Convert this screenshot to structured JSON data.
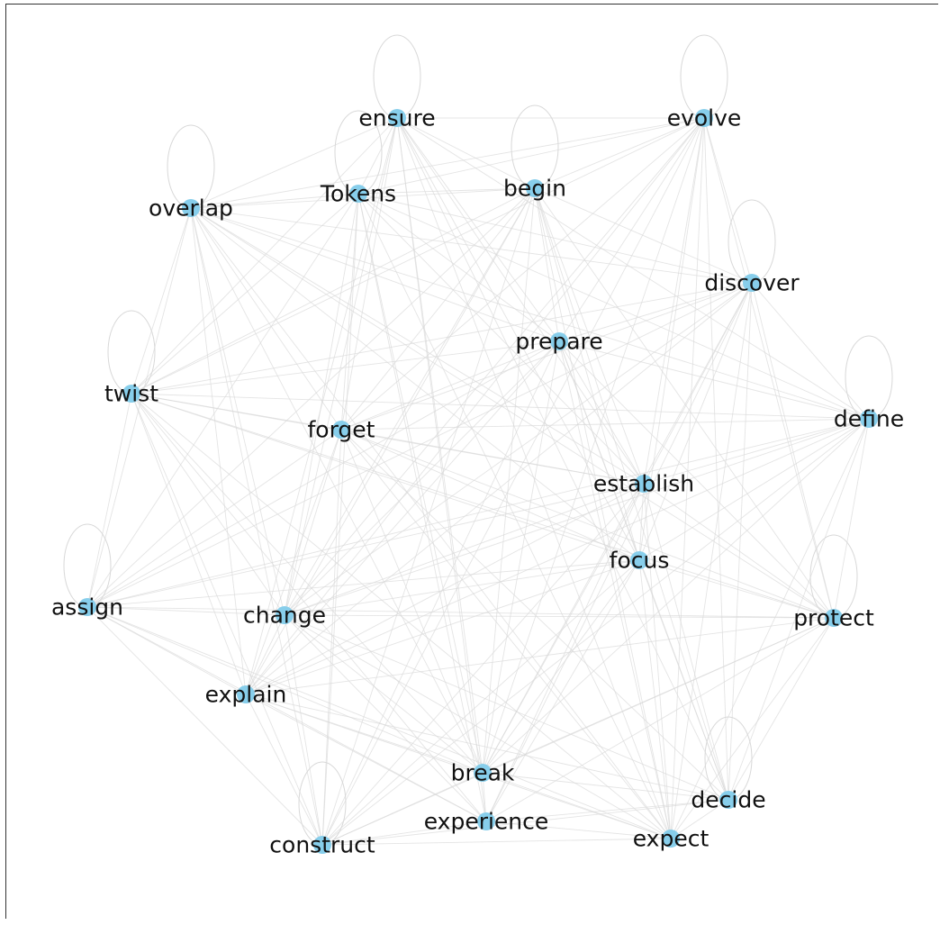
{
  "graph": {
    "colors": {
      "node": "#87CEEB",
      "edge": "#d8d8d8",
      "label": "#111111"
    },
    "nodes": [
      {
        "id": "ensure",
        "label": "ensure"
      },
      {
        "id": "evolve",
        "label": "evolve"
      },
      {
        "id": "Tokens",
        "label": "Tokens"
      },
      {
        "id": "begin",
        "label": "begin"
      },
      {
        "id": "overlap",
        "label": "overlap"
      },
      {
        "id": "discover",
        "label": "discover"
      },
      {
        "id": "prepare",
        "label": "prepare"
      },
      {
        "id": "twist",
        "label": "twist"
      },
      {
        "id": "forget",
        "label": "forget"
      },
      {
        "id": "define",
        "label": "define"
      },
      {
        "id": "establish",
        "label": "establish"
      },
      {
        "id": "focus",
        "label": "focus"
      },
      {
        "id": "assign",
        "label": "assign"
      },
      {
        "id": "change",
        "label": "change"
      },
      {
        "id": "protect",
        "label": "protect"
      },
      {
        "id": "explain",
        "label": "explain"
      },
      {
        "id": "break",
        "label": "break"
      },
      {
        "id": "decide",
        "label": "decide"
      },
      {
        "id": "experience",
        "label": "experience"
      },
      {
        "id": "expect",
        "label": "expect"
      },
      {
        "id": "construct",
        "label": "construct"
      }
    ],
    "self_loops": [
      "ensure",
      "evolve",
      "overlap",
      "begin",
      "discover",
      "twist",
      "define",
      "assign",
      "protect",
      "decide",
      "construct",
      "Tokens"
    ],
    "edges": [
      [
        "ensure",
        "evolve"
      ],
      [
        "ensure",
        "Tokens"
      ],
      [
        "ensure",
        "begin"
      ],
      [
        "ensure",
        "overlap"
      ],
      [
        "ensure",
        "prepare"
      ],
      [
        "ensure",
        "twist"
      ],
      [
        "ensure",
        "forget"
      ],
      [
        "ensure",
        "establish"
      ],
      [
        "ensure",
        "focus"
      ],
      [
        "ensure",
        "change"
      ],
      [
        "ensure",
        "explain"
      ],
      [
        "ensure",
        "break"
      ],
      [
        "ensure",
        "experience"
      ],
      [
        "ensure",
        "expect"
      ],
      [
        "ensure",
        "define"
      ],
      [
        "ensure",
        "decide"
      ],
      [
        "evolve",
        "begin"
      ],
      [
        "evolve",
        "discover"
      ],
      [
        "evolve",
        "prepare"
      ],
      [
        "evolve",
        "Tokens"
      ],
      [
        "evolve",
        "overlap"
      ],
      [
        "evolve",
        "forget"
      ],
      [
        "evolve",
        "establish"
      ],
      [
        "evolve",
        "focus"
      ],
      [
        "evolve",
        "protect"
      ],
      [
        "evolve",
        "break"
      ],
      [
        "evolve",
        "expect"
      ],
      [
        "evolve",
        "construct"
      ],
      [
        "evolve",
        "change"
      ],
      [
        "evolve",
        "explain"
      ],
      [
        "evolve",
        "twist"
      ],
      [
        "evolve",
        "decide"
      ],
      [
        "Tokens",
        "begin"
      ],
      [
        "Tokens",
        "overlap"
      ],
      [
        "Tokens",
        "forget"
      ],
      [
        "Tokens",
        "prepare"
      ],
      [
        "Tokens",
        "discover"
      ],
      [
        "Tokens",
        "define"
      ],
      [
        "Tokens",
        "establish"
      ],
      [
        "Tokens",
        "twist"
      ],
      [
        "Tokens",
        "change"
      ],
      [
        "Tokens",
        "break"
      ],
      [
        "Tokens",
        "construct"
      ],
      [
        "Tokens",
        "experience"
      ],
      [
        "Tokens",
        "expect"
      ],
      [
        "Tokens",
        "assign"
      ],
      [
        "begin",
        "prepare"
      ],
      [
        "begin",
        "discover"
      ],
      [
        "begin",
        "overlap"
      ],
      [
        "begin",
        "forget"
      ],
      [
        "begin",
        "establish"
      ],
      [
        "begin",
        "focus"
      ],
      [
        "begin",
        "twist"
      ],
      [
        "begin",
        "change"
      ],
      [
        "begin",
        "explain"
      ],
      [
        "begin",
        "break"
      ],
      [
        "begin",
        "expect"
      ],
      [
        "begin",
        "assign"
      ],
      [
        "begin",
        "construct"
      ],
      [
        "begin",
        "protect"
      ],
      [
        "begin",
        "decide"
      ],
      [
        "overlap",
        "twist"
      ],
      [
        "overlap",
        "assign"
      ],
      [
        "overlap",
        "forget"
      ],
      [
        "overlap",
        "prepare"
      ],
      [
        "overlap",
        "discover"
      ],
      [
        "overlap",
        "establish"
      ],
      [
        "overlap",
        "define"
      ],
      [
        "overlap",
        "change"
      ],
      [
        "overlap",
        "explain"
      ],
      [
        "overlap",
        "break"
      ],
      [
        "overlap",
        "construct"
      ],
      [
        "overlap",
        "focus"
      ],
      [
        "overlap",
        "protect"
      ],
      [
        "overlap",
        "expect"
      ],
      [
        "discover",
        "prepare"
      ],
      [
        "discover",
        "define"
      ],
      [
        "discover",
        "twist"
      ],
      [
        "discover",
        "forget"
      ],
      [
        "discover",
        "establish"
      ],
      [
        "discover",
        "focus"
      ],
      [
        "discover",
        "protect"
      ],
      [
        "discover",
        "break"
      ],
      [
        "discover",
        "decide"
      ],
      [
        "discover",
        "expect"
      ],
      [
        "discover",
        "assign"
      ],
      [
        "discover",
        "change"
      ],
      [
        "discover",
        "explain"
      ],
      [
        "discover",
        "experience"
      ],
      [
        "prepare",
        "forget"
      ],
      [
        "prepare",
        "establish"
      ],
      [
        "prepare",
        "focus"
      ],
      [
        "prepare",
        "twist"
      ],
      [
        "prepare",
        "change"
      ],
      [
        "prepare",
        "explain"
      ],
      [
        "prepare",
        "break"
      ],
      [
        "prepare",
        "decide"
      ],
      [
        "prepare",
        "expect"
      ],
      [
        "prepare",
        "assign"
      ],
      [
        "prepare",
        "construct"
      ],
      [
        "prepare",
        "protect"
      ],
      [
        "prepare",
        "define"
      ],
      [
        "twist",
        "forget"
      ],
      [
        "twist",
        "assign"
      ],
      [
        "twist",
        "define"
      ],
      [
        "twist",
        "establish"
      ],
      [
        "twist",
        "focus"
      ],
      [
        "twist",
        "change"
      ],
      [
        "twist",
        "explain"
      ],
      [
        "twist",
        "break"
      ],
      [
        "twist",
        "construct"
      ],
      [
        "twist",
        "experience"
      ],
      [
        "twist",
        "expect"
      ],
      [
        "twist",
        "protect"
      ],
      [
        "forget",
        "define"
      ],
      [
        "forget",
        "establish"
      ],
      [
        "forget",
        "focus"
      ],
      [
        "forget",
        "change"
      ],
      [
        "forget",
        "explain"
      ],
      [
        "forget",
        "break"
      ],
      [
        "forget",
        "construct"
      ],
      [
        "forget",
        "expect"
      ],
      [
        "forget",
        "protect"
      ],
      [
        "forget",
        "decide"
      ],
      [
        "forget",
        "assign"
      ],
      [
        "define",
        "establish"
      ],
      [
        "define",
        "focus"
      ],
      [
        "define",
        "protect"
      ],
      [
        "define",
        "assign"
      ],
      [
        "define",
        "explain"
      ],
      [
        "define",
        "break"
      ],
      [
        "define",
        "decide"
      ],
      [
        "define",
        "expect"
      ],
      [
        "define",
        "construct"
      ],
      [
        "define",
        "change"
      ],
      [
        "establish",
        "focus"
      ],
      [
        "establish",
        "change"
      ],
      [
        "establish",
        "protect"
      ],
      [
        "establish",
        "break"
      ],
      [
        "establish",
        "experience"
      ],
      [
        "establish",
        "expect"
      ],
      [
        "establish",
        "decide"
      ],
      [
        "establish",
        "construct"
      ],
      [
        "establish",
        "assign"
      ],
      [
        "establish",
        "explain"
      ],
      [
        "focus",
        "protect"
      ],
      [
        "focus",
        "assign"
      ],
      [
        "focus",
        "explain"
      ],
      [
        "focus",
        "break"
      ],
      [
        "focus",
        "experience"
      ],
      [
        "focus",
        "decide"
      ],
      [
        "focus",
        "expect"
      ],
      [
        "focus",
        "construct"
      ],
      [
        "focus",
        "change"
      ],
      [
        "assign",
        "change"
      ],
      [
        "assign",
        "explain"
      ],
      [
        "assign",
        "protect"
      ],
      [
        "assign",
        "construct"
      ],
      [
        "assign",
        "experience"
      ],
      [
        "assign",
        "break"
      ],
      [
        "assign",
        "expect"
      ],
      [
        "change",
        "protect"
      ],
      [
        "change",
        "explain"
      ],
      [
        "change",
        "break"
      ],
      [
        "change",
        "construct"
      ],
      [
        "change",
        "experience"
      ],
      [
        "change",
        "expect"
      ],
      [
        "change",
        "decide"
      ],
      [
        "protect",
        "explain"
      ],
      [
        "protect",
        "break"
      ],
      [
        "protect",
        "decide"
      ],
      [
        "protect",
        "expect"
      ],
      [
        "protect",
        "experience"
      ],
      [
        "protect",
        "construct"
      ],
      [
        "explain",
        "construct"
      ],
      [
        "explain",
        "break"
      ],
      [
        "explain",
        "experience"
      ],
      [
        "explain",
        "expect"
      ],
      [
        "explain",
        "decide"
      ],
      [
        "break",
        "experience"
      ],
      [
        "break",
        "expect"
      ],
      [
        "break",
        "decide"
      ],
      [
        "break",
        "construct"
      ],
      [
        "decide",
        "expect"
      ],
      [
        "decide",
        "experience"
      ],
      [
        "decide",
        "construct"
      ],
      [
        "experience",
        "expect"
      ],
      [
        "experience",
        "construct"
      ],
      [
        "expect",
        "construct"
      ]
    ]
  }
}
